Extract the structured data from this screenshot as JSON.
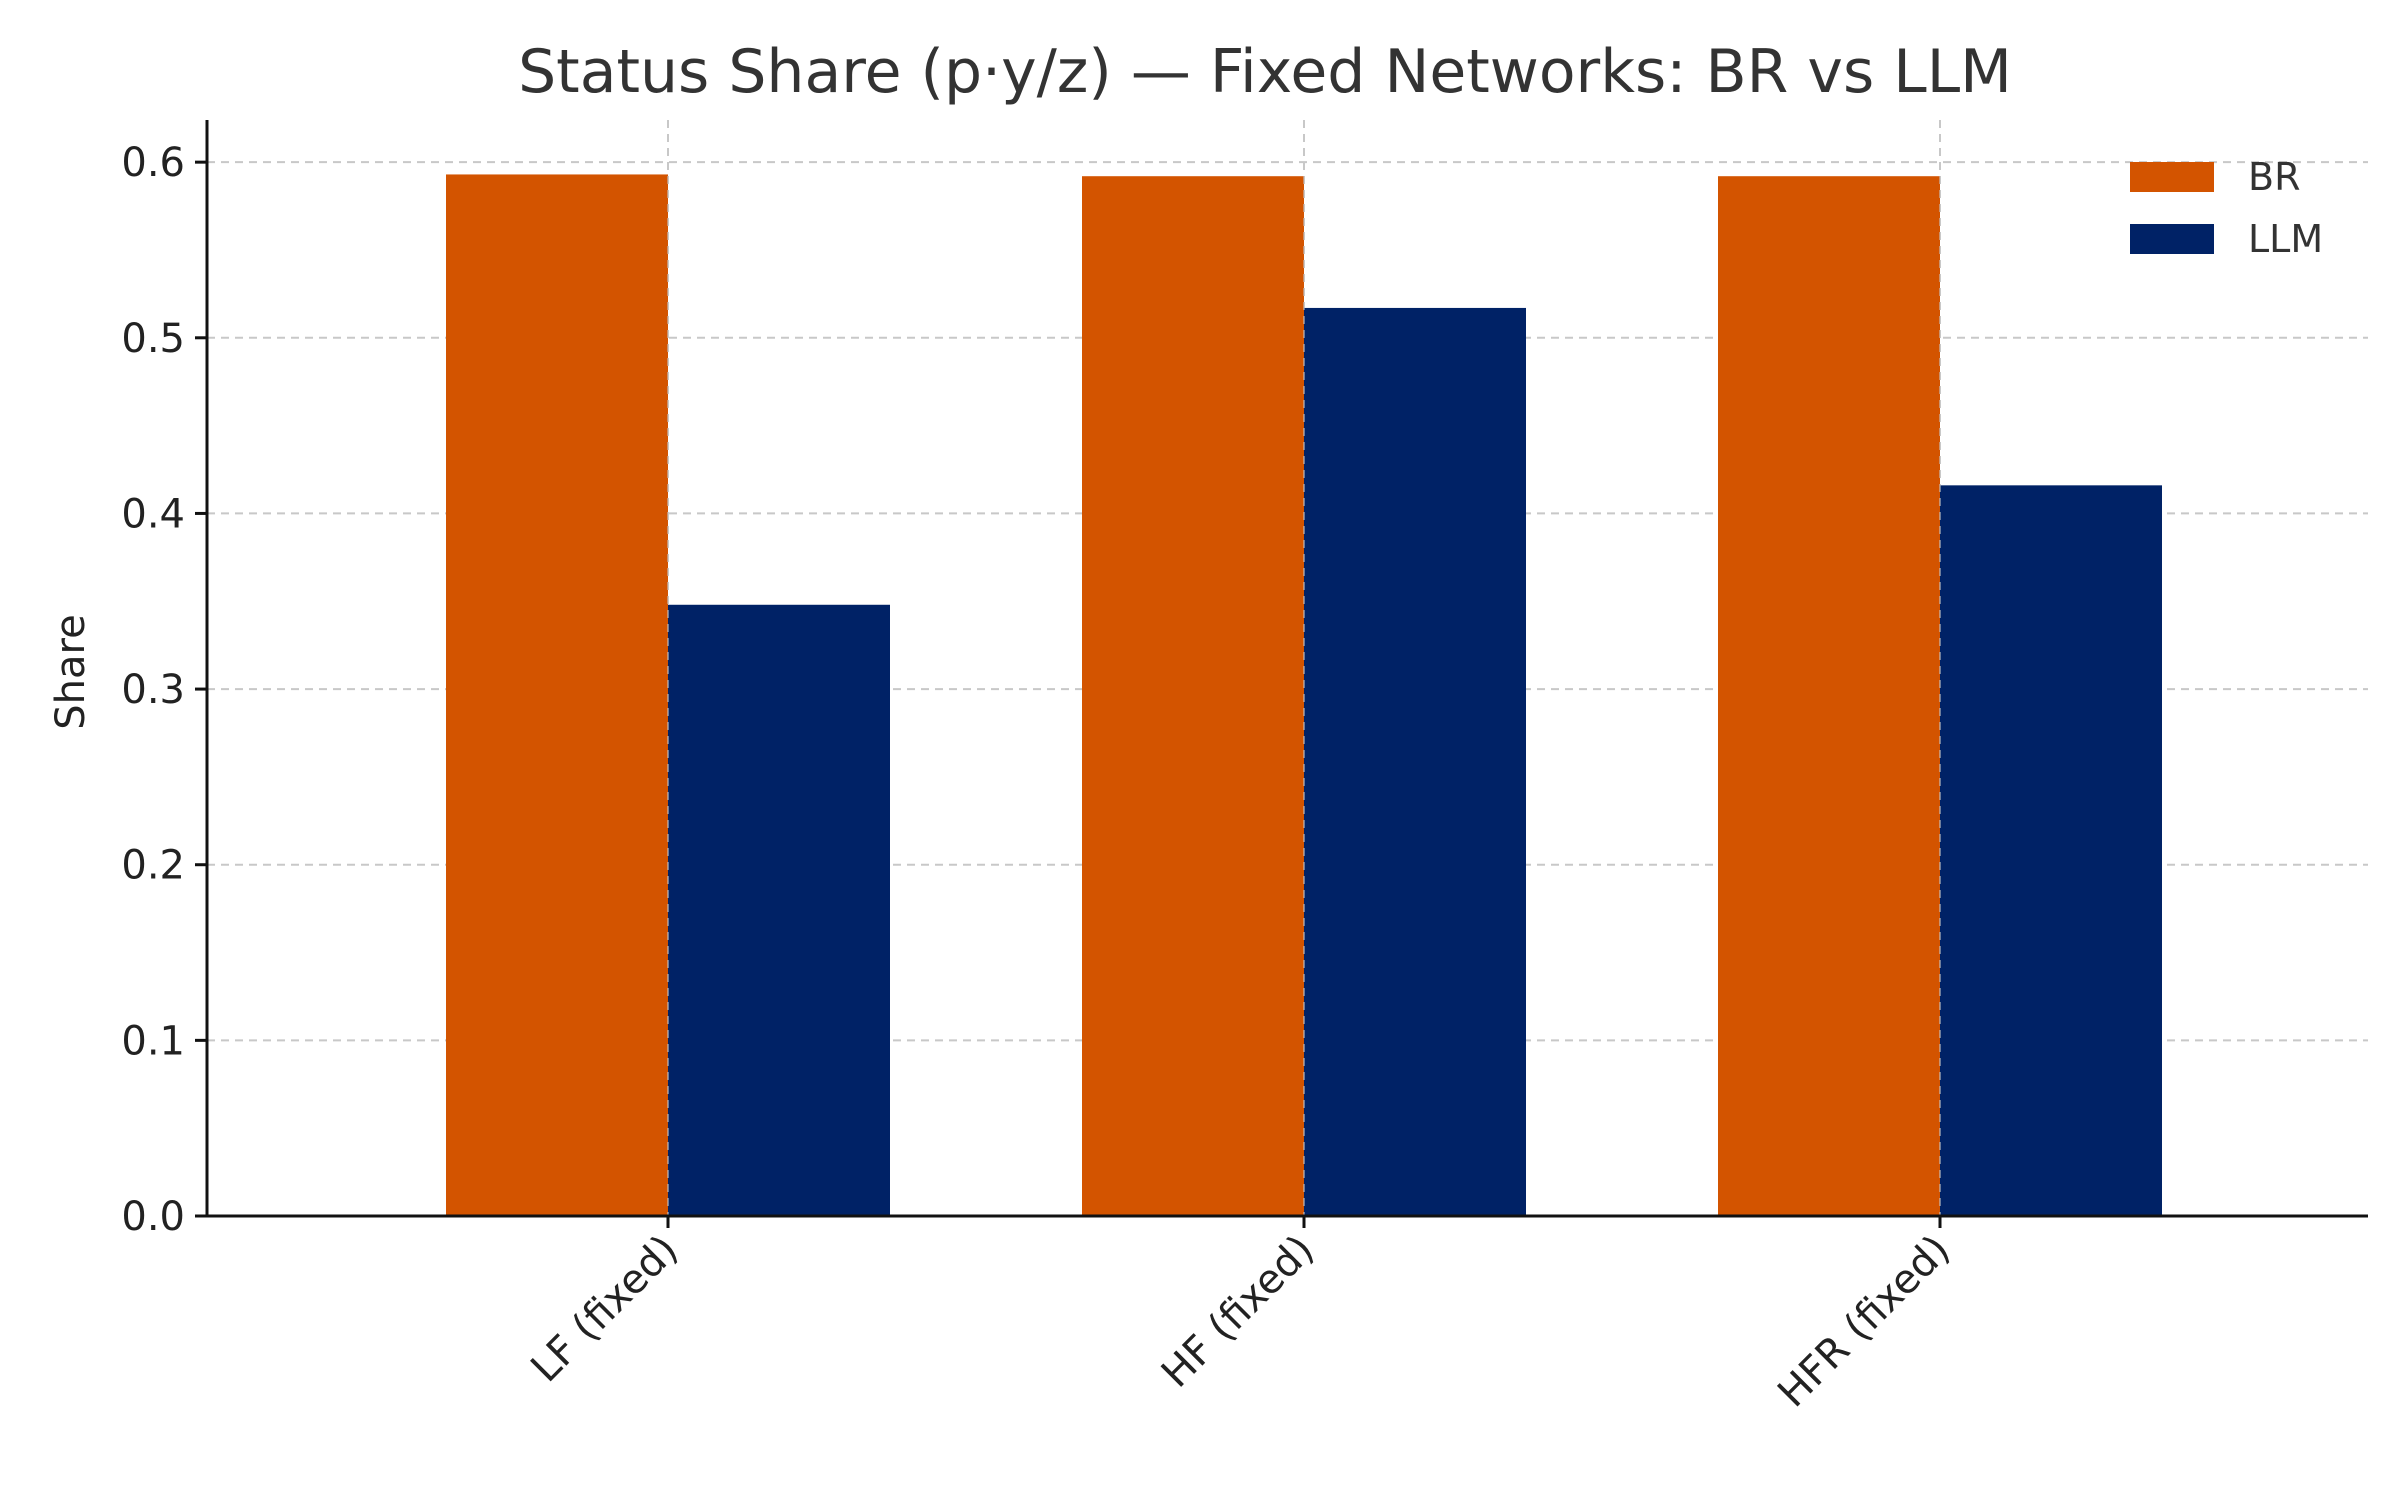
{
  "chart_data": {
    "type": "bar",
    "title": "Status Share (p·y/z) — Fixed Networks: BR vs LLM",
    "xlabel": "",
    "ylabel": "Share",
    "categories": [
      "LF (fixed)",
      "HF (fixed)",
      "HFR (fixed)"
    ],
    "series": [
      {
        "name": "BR",
        "color": "#d35400",
        "values": [
          0.593,
          0.592,
          0.592
        ]
      },
      {
        "name": "LLM",
        "color": "#002266",
        "values": [
          0.348,
          0.517,
          0.416
        ]
      }
    ],
    "ylim": [
      0,
      0.624
    ],
    "yticks": [
      "0.0",
      "0.1",
      "0.2",
      "0.3",
      "0.4",
      "0.5",
      "0.6"
    ],
    "grid": true,
    "legend_position": "top-right"
  }
}
